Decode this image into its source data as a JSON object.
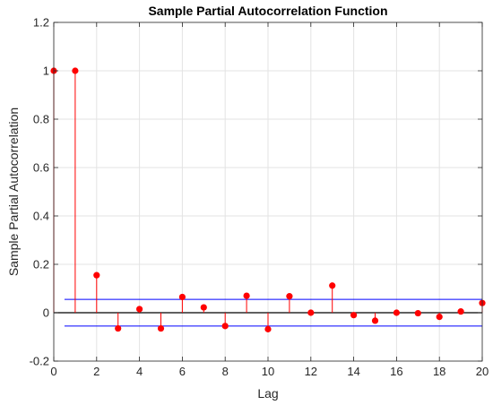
{
  "chart_data": {
    "type": "stem",
    "title": "Sample Partial Autocorrelation Function",
    "xlabel": "Lag",
    "ylabel": "Sample Partial Autocorrelation",
    "xlim": [
      0,
      20
    ],
    "ylim": [
      -0.2,
      1.2
    ],
    "xticks": [
      0,
      2,
      4,
      6,
      8,
      10,
      12,
      14,
      16,
      18,
      20
    ],
    "yticks": [
      -0.2,
      0,
      0.2,
      0.4,
      0.6,
      0.8,
      1,
      1.2
    ],
    "xtick_labels": [
      "0",
      "2",
      "4",
      "6",
      "8",
      "10",
      "12",
      "14",
      "16",
      "18",
      "20"
    ],
    "ytick_labels": [
      "-0.2",
      "0",
      "0.2",
      "0.4",
      "0.6",
      "0.8",
      "1",
      "1.2"
    ],
    "grid": true,
    "series": [
      {
        "x": [
          0,
          1,
          2,
          3,
          4,
          5,
          6,
          7,
          8,
          9,
          10,
          11,
          12,
          13,
          14,
          15,
          16,
          17,
          18,
          19,
          20
        ],
        "values": [
          1.0,
          1.0,
          0.155,
          -0.065,
          0.015,
          -0.065,
          0.065,
          0.022,
          -0.055,
          0.07,
          -0.068,
          0.068,
          0.0,
          0.112,
          -0.01,
          -0.033,
          0.0,
          -0.002,
          -0.017,
          0.005,
          0.04
        ],
        "color": "#ff0000"
      }
    ],
    "confidence_bounds": {
      "upper": 0.055,
      "lower": -0.055,
      "x_range": [
        0.5,
        20
      ],
      "color": "#0000ff"
    },
    "zero_line_color": "#000000"
  }
}
